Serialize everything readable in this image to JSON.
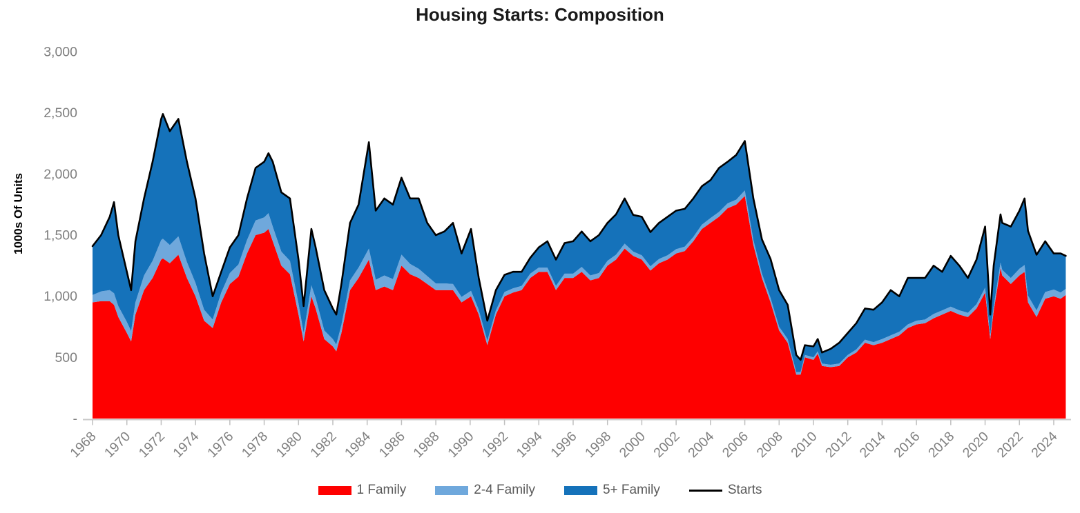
{
  "chart_data": {
    "type": "area",
    "stacked": true,
    "title": "Housing Starts: Composition",
    "ylabel": "1000s Of Units",
    "xlabel": "",
    "grid": false,
    "legend_position": "bottom",
    "ylim": [
      0,
      3000
    ],
    "yticks": [
      0,
      500,
      1000,
      1500,
      2000,
      2500,
      3000
    ],
    "ytick_labels": [
      "-",
      "500",
      "1,000",
      "1,500",
      "2,000",
      "2,500",
      "3,000"
    ],
    "xticks": [
      1968,
      1970,
      1972,
      1974,
      1976,
      1978,
      1980,
      1982,
      1984,
      1986,
      1988,
      1990,
      1992,
      1994,
      1996,
      1998,
      2000,
      2002,
      2004,
      2006,
      2008,
      2010,
      2012,
      2014,
      2016,
      2018,
      2020,
      2022,
      2024
    ],
    "xlim": [
      1968,
      2024.7
    ],
    "x": [
      1968,
      1968.5,
      1969,
      1969.25,
      1969.5,
      1970,
      1970.25,
      1970.5,
      1971,
      1971.5,
      1972,
      1972.1,
      1972.5,
      1973,
      1973.5,
      1974,
      1974.5,
      1975,
      1975.5,
      1976,
      1976.5,
      1977,
      1977.5,
      1978,
      1978.25,
      1978.5,
      1979,
      1979.5,
      1980,
      1980.3,
      1980.75,
      1981,
      1981.5,
      1982,
      1982.2,
      1982.5,
      1983,
      1983.5,
      1984.1,
      1984.5,
      1985,
      1985.5,
      1986,
      1986.5,
      1987,
      1987.5,
      1988,
      1988.5,
      1989,
      1989.5,
      1990.05,
      1990.5,
      1991,
      1991.5,
      1992,
      1992.5,
      1993,
      1993.5,
      1994,
      1994.5,
      1995,
      1995.5,
      1996,
      1996.5,
      1997,
      1997.5,
      1998,
      1998.5,
      1999,
      1999.5,
      2000,
      2000.5,
      2001,
      2001.5,
      2002,
      2002.5,
      2003,
      2003.5,
      2004,
      2004.5,
      2005,
      2005.5,
      2006,
      2006.5,
      2007,
      2007.5,
      2008,
      2008.5,
      2009,
      2009.25,
      2009.5,
      2010,
      2010.25,
      2010.5,
      2011,
      2011.5,
      2012,
      2012.5,
      2013,
      2013.5,
      2014,
      2014.5,
      2015,
      2015.5,
      2016,
      2016.5,
      2017,
      2017.5,
      2018,
      2018.5,
      2019,
      2019.5,
      2020,
      2020.3,
      2020.5,
      2020.9,
      2021,
      2021.5,
      2022,
      2022.3,
      2022.5,
      2023,
      2023.5,
      2024,
      2024.4,
      2024.7
    ],
    "series": [
      {
        "name": "1 Family",
        "color": "#FE0000",
        "values": [
          950,
          960,
          960,
          930,
          830,
          700,
          630,
          850,
          1050,
          1150,
          1300,
          1310,
          1270,
          1340,
          1150,
          1000,
          800,
          740,
          950,
          1100,
          1160,
          1350,
          1500,
          1520,
          1550,
          1450,
          1250,
          1180,
          850,
          630,
          1000,
          900,
          650,
          590,
          550,
          700,
          1050,
          1150,
          1300,
          1050,
          1080,
          1050,
          1250,
          1180,
          1150,
          1100,
          1050,
          1050,
          1050,
          950,
          1000,
          850,
          600,
          850,
          1000,
          1030,
          1050,
          1150,
          1200,
          1200,
          1050,
          1150,
          1150,
          1200,
          1130,
          1150,
          1250,
          1300,
          1390,
          1330,
          1300,
          1210,
          1270,
          1300,
          1350,
          1370,
          1450,
          1550,
          1600,
          1650,
          1720,
          1750,
          1820,
          1420,
          1150,
          950,
          720,
          620,
          360,
          360,
          500,
          480,
          530,
          430,
          420,
          430,
          500,
          540,
          620,
          600,
          620,
          650,
          680,
          740,
          770,
          780,
          820,
          850,
          880,
          850,
          830,
          900,
          1030,
          650,
          880,
          1230,
          1170,
          1100,
          1170,
          1200,
          950,
          830,
          980,
          1000,
          980,
          1010
        ]
      },
      {
        "name": "2-4 Family",
        "color": "#6FA8DC",
        "values": [
          60,
          80,
          90,
          95,
          90,
          90,
          85,
          100,
          120,
          140,
          160,
          160,
          150,
          150,
          130,
          110,
          90,
          70,
          80,
          90,
          100,
          110,
          120,
          125,
          130,
          120,
          115,
          110,
          90,
          70,
          90,
          85,
          70,
          60,
          55,
          65,
          80,
          85,
          90,
          85,
          90,
          90,
          90,
          85,
          75,
          65,
          55,
          55,
          50,
          45,
          45,
          40,
          35,
          35,
          35,
          35,
          35,
          35,
          35,
          35,
          35,
          35,
          35,
          40,
          40,
          40,
          40,
          40,
          40,
          35,
          35,
          35,
          35,
          35,
          35,
          35,
          35,
          35,
          40,
          40,
          40,
          40,
          45,
          40,
          35,
          35,
          30,
          30,
          20,
          20,
          20,
          20,
          20,
          20,
          20,
          20,
          20,
          25,
          25,
          25,
          30,
          30,
          30,
          30,
          30,
          30,
          35,
          35,
          35,
          35,
          35,
          35,
          40,
          30,
          40,
          45,
          45,
          50,
          55,
          55,
          55,
          55,
          55,
          55,
          50,
          50
        ]
      },
      {
        "name": "5+ Family",
        "color": "#1572BA",
        "values": [
          400,
          460,
          600,
          745,
          580,
          410,
          335,
          500,
          630,
          810,
          990,
          1020,
          930,
          960,
          820,
          690,
          460,
          190,
          170,
          210,
          240,
          340,
          430,
          455,
          490,
          530,
          485,
          510,
          360,
          220,
          460,
          415,
          330,
          250,
          245,
          335,
          470,
          515,
          870,
          565,
          630,
          610,
          630,
          535,
          575,
          435,
          395,
          425,
          500,
          355,
          505,
          260,
          165,
          165,
          140,
          135,
          115,
          130,
          165,
          215,
          215,
          250,
          265,
          290,
          280,
          310,
          310,
          330,
          370,
          300,
          315,
          280,
          295,
          315,
          315,
          310,
          315,
          315,
          310,
          360,
          340,
          365,
          405,
          340,
          280,
          320,
          300,
          280,
          140,
          100,
          80,
          90,
          100,
          90,
          130,
          170,
          180,
          215,
          255,
          265,
          300,
          370,
          290,
          380,
          350,
          340,
          395,
          315,
          415,
          365,
          285,
          365,
          500,
          170,
          330,
          395,
          385,
          420,
          475,
          545,
          530,
          455,
          415,
          295,
          320,
          270
        ]
      }
    ],
    "line_series": {
      "name": "Starts",
      "color": "#000000",
      "values": [
        1410,
        1500,
        1650,
        1770,
        1500,
        1200,
        1050,
        1450,
        1800,
        2100,
        2450,
        2490,
        2350,
        2450,
        2100,
        1800,
        1350,
        1000,
        1200,
        1400,
        1500,
        1800,
        2050,
        2100,
        2170,
        2100,
        1850,
        1800,
        1300,
        920,
        1550,
        1400,
        1050,
        900,
        850,
        1100,
        1600,
        1750,
        2260,
        1700,
        1800,
        1750,
        1970,
        1800,
        1800,
        1600,
        1500,
        1530,
        1600,
        1350,
        1550,
        1150,
        800,
        1050,
        1175,
        1200,
        1200,
        1315,
        1400,
        1450,
        1300,
        1435,
        1450,
        1530,
        1450,
        1500,
        1600,
        1670,
        1800,
        1665,
        1650,
        1525,
        1600,
        1650,
        1700,
        1715,
        1800,
        1900,
        1950,
        2050,
        2100,
        2155,
        2270,
        1800,
        1465,
        1305,
        1050,
        930,
        520,
        480,
        600,
        590,
        650,
        540,
        570,
        620,
        700,
        780,
        900,
        890,
        950,
        1050,
        1000,
        1150,
        1150,
        1150,
        1250,
        1200,
        1330,
        1250,
        1150,
        1300,
        1570,
        850,
        1250,
        1670,
        1600,
        1570,
        1700,
        1800,
        1535,
        1340,
        1450,
        1350,
        1350,
        1330
      ]
    },
    "colors": {
      "title": "#1A1A1A",
      "axis_line": "#C9C9C9",
      "tick_mark": "#BFBFBF",
      "tick_label": "#7F7F7F",
      "legend_text": "#595959",
      "background": "#FFFFFF"
    }
  }
}
